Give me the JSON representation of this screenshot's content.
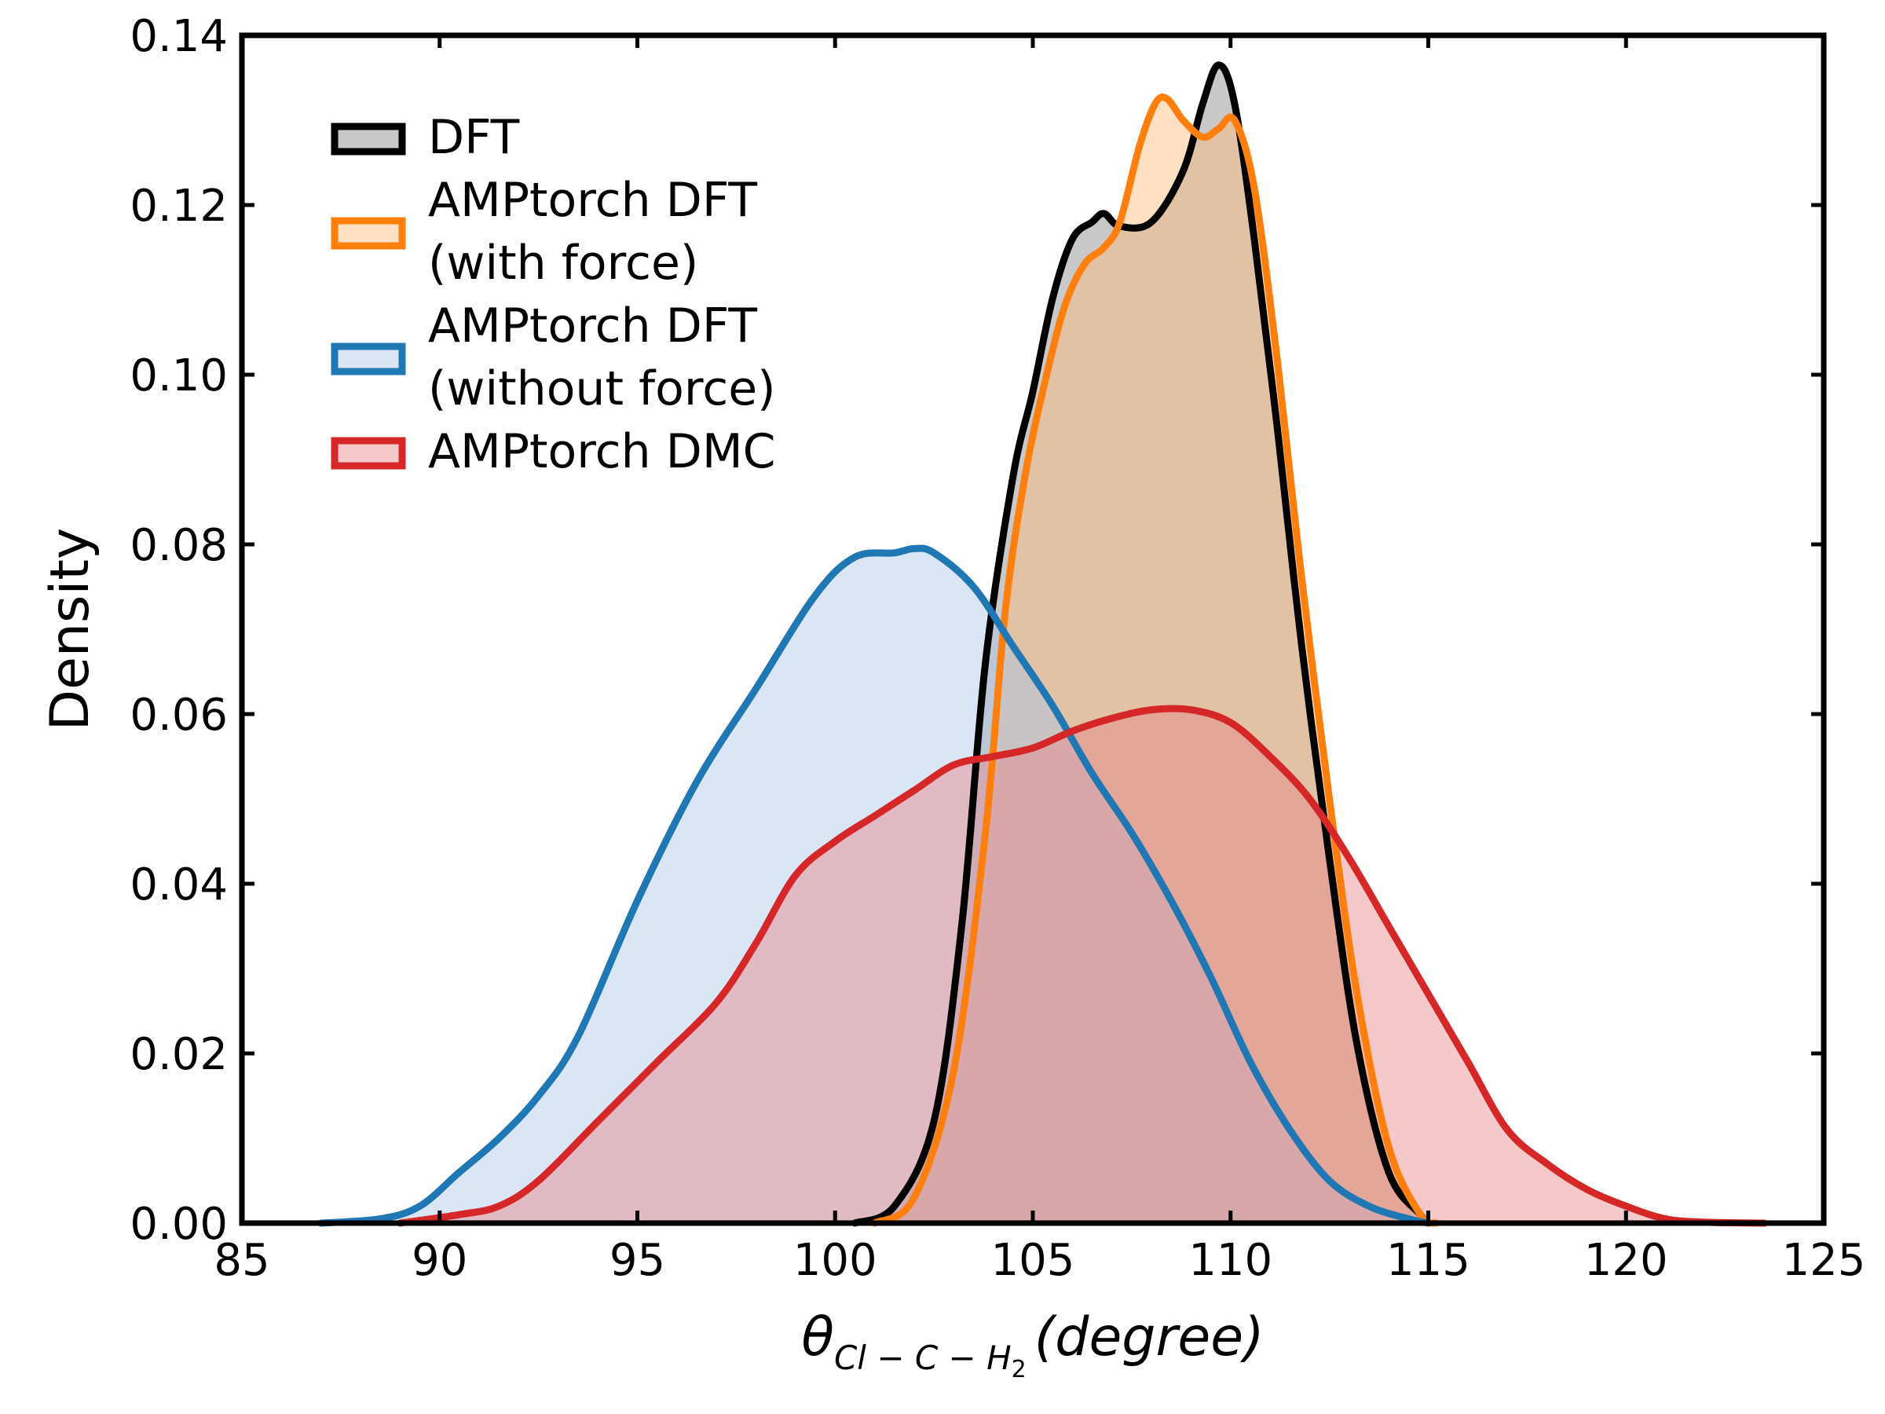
{
  "chart_data": {
    "type": "area",
    "xlabel": {
      "theta": "θ",
      "subscript": "Cl − C − H",
      "subsub": "2",
      "unit": "(degree)"
    },
    "ylabel": "Density",
    "xlim": [
      85,
      125
    ],
    "ylim": [
      0,
      0.14
    ],
    "xticks": [
      85,
      90,
      95,
      100,
      105,
      110,
      115,
      120,
      125
    ],
    "yticks": [
      0.0,
      0.02,
      0.04,
      0.06,
      0.08,
      0.1,
      0.12,
      0.14
    ],
    "xtick_labels": [
      "85",
      "90",
      "95",
      "100",
      "105",
      "110",
      "115",
      "120",
      "125"
    ],
    "ytick_labels": [
      "0.00",
      "0.02",
      "0.04",
      "0.06",
      "0.08",
      "0.10",
      "0.12",
      "0.14"
    ],
    "legend_position": "top-left",
    "grid": false,
    "series": [
      {
        "name": "DFT",
        "label_lines": [
          "DFT"
        ],
        "color": "#000000",
        "fill": "#888888",
        "x": [
          100.5,
          101.5,
          102.5,
          103.2,
          103.8,
          104.5,
          105.0,
          105.5,
          106.0,
          106.5,
          106.8,
          107.2,
          108.0,
          108.8,
          109.3,
          109.7,
          110.1,
          110.6,
          111.2,
          111.8,
          112.5,
          113.2,
          114.0,
          114.8,
          115.0
        ],
        "y": [
          0.0,
          0.002,
          0.012,
          0.035,
          0.066,
          0.088,
          0.098,
          0.109,
          0.116,
          0.118,
          0.119,
          0.1175,
          0.118,
          0.124,
          0.132,
          0.1365,
          0.132,
          0.116,
          0.093,
          0.068,
          0.043,
          0.021,
          0.006,
          0.001,
          0.0
        ]
      },
      {
        "name": "AMPtorch DFT (with force)",
        "label_lines": [
          "AMPtorch DFT",
          "(with force)"
        ],
        "color": "#ff7f0e",
        "fill": "#ffbb78",
        "x": [
          101.0,
          102.0,
          103.0,
          103.8,
          104.3,
          104.8,
          105.3,
          105.8,
          106.3,
          106.8,
          107.2,
          107.7,
          108.1,
          108.4,
          108.8,
          109.3,
          109.7,
          110.1,
          110.6,
          111.2,
          111.8,
          112.5,
          113.2,
          114.0,
          114.8,
          115.2
        ],
        "y": [
          0.0,
          0.003,
          0.018,
          0.046,
          0.072,
          0.088,
          0.099,
          0.108,
          0.113,
          0.115,
          0.118,
          0.127,
          0.132,
          0.1325,
          0.13,
          0.128,
          0.129,
          0.13,
          0.122,
          0.101,
          0.076,
          0.05,
          0.027,
          0.009,
          0.001,
          0.0
        ]
      },
      {
        "name": "AMPtorch DFT (without force)",
        "label_lines": [
          "AMPtorch DFT",
          "(without force)"
        ],
        "color": "#1f77b4",
        "fill": "#aec7e8",
        "x": [
          87.0,
          88.5,
          89.5,
          90.5,
          91.5,
          92.5,
          93.5,
          95.0,
          96.5,
          98.0,
          99.5,
          100.5,
          101.5,
          102.0,
          102.5,
          103.5,
          104.5,
          105.5,
          106.5,
          107.5,
          108.5,
          109.5,
          110.5,
          111.5,
          112.5,
          113.5,
          114.5,
          115.0
        ],
        "y": [
          0.0,
          0.0005,
          0.002,
          0.006,
          0.01,
          0.015,
          0.022,
          0.038,
          0.052,
          0.063,
          0.074,
          0.0785,
          0.079,
          0.0795,
          0.079,
          0.075,
          0.068,
          0.061,
          0.053,
          0.046,
          0.038,
          0.029,
          0.019,
          0.011,
          0.005,
          0.002,
          0.0005,
          0.0
        ]
      },
      {
        "name": "AMPtorch DMC",
        "label_lines": [
          "AMPtorch DMC"
        ],
        "color": "#d62728",
        "fill": "#e8848a",
        "x": [
          89.0,
          90.5,
          91.5,
          92.5,
          94.0,
          95.5,
          97.0,
          98.0,
          99.0,
          100.0,
          101.0,
          102.0,
          103.0,
          104.0,
          105.0,
          106.0,
          107.0,
          108.0,
          109.0,
          110.0,
          111.0,
          112.0,
          113.0,
          114.0,
          115.0,
          116.0,
          117.0,
          118.0,
          119.0,
          120.0,
          121.0,
          122.0,
          123.5
        ],
        "y": [
          0.0,
          0.001,
          0.002,
          0.005,
          0.012,
          0.019,
          0.026,
          0.033,
          0.041,
          0.045,
          0.048,
          0.051,
          0.054,
          0.055,
          0.056,
          0.058,
          0.0595,
          0.0605,
          0.0605,
          0.059,
          0.055,
          0.05,
          0.043,
          0.035,
          0.027,
          0.019,
          0.011,
          0.007,
          0.004,
          0.002,
          0.0005,
          0.0001,
          0.0
        ]
      }
    ]
  }
}
